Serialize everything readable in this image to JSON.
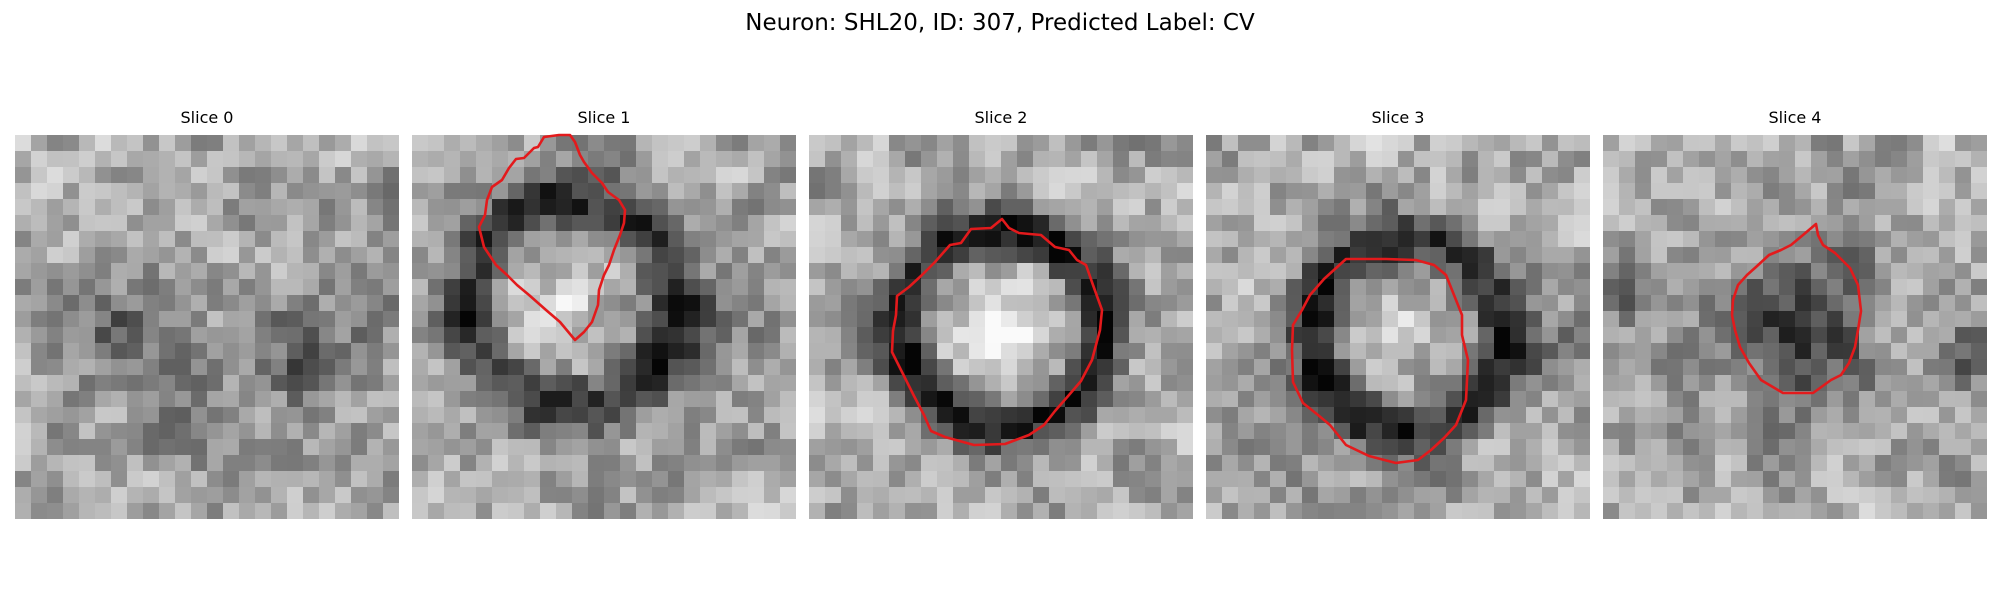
{
  "figure": {
    "title": "Neuron: SHL20, ID: 307, Predicted Label: CV",
    "contour_color": "#e31a1c",
    "colormap": "grayscale"
  },
  "panels": [
    {
      "title": "Slice 0",
      "seed": 11,
      "contour": []
    },
    {
      "title": "Slice 1",
      "seed": 23,
      "contour": []
    },
    {
      "title": "Slice 2",
      "seed": 37,
      "contour": []
    },
    {
      "title": "Slice 3",
      "seed": 41,
      "contour": []
    },
    {
      "title": "Slice 4",
      "seed": 59,
      "contour": []
    }
  ]
}
